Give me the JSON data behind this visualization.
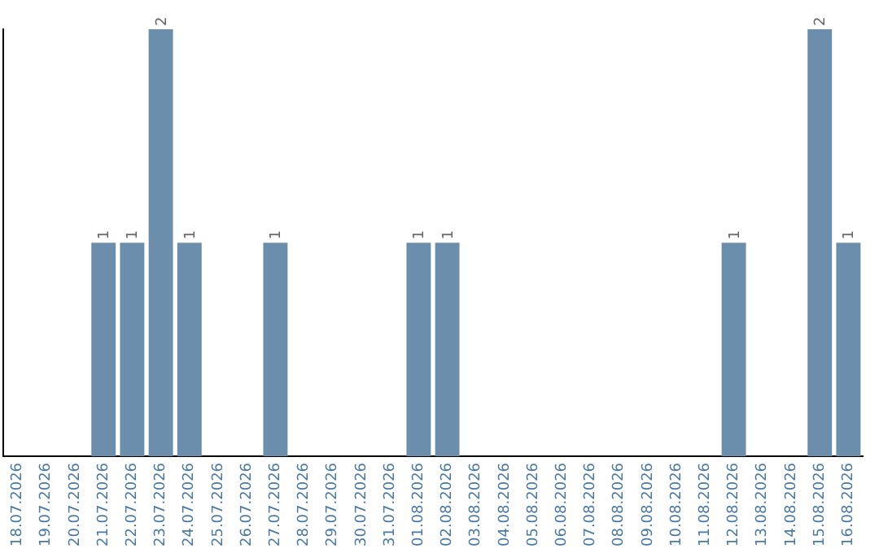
{
  "chart_data": {
    "type": "bar",
    "categories": [
      "18.07.2026",
      "19.07.2026",
      "20.07.2026",
      "21.07.2026",
      "22.07.2026",
      "23.07.2026",
      "24.07.2026",
      "25.07.2026",
      "26.07.2026",
      "27.07.2026",
      "28.07.2026",
      "29.07.2026",
      "30.07.2026",
      "31.07.2026",
      "01.08.2026",
      "02.08.2026",
      "03.08.2026",
      "04.08.2026",
      "05.08.2026",
      "06.08.2026",
      "07.08.2026",
      "08.08.2026",
      "09.08.2026",
      "10.08.2026",
      "11.08.2026",
      "12.08.2026",
      "13.08.2026",
      "14.08.2026",
      "15.08.2026",
      "16.08.2026"
    ],
    "values": [
      0,
      0,
      0,
      1,
      1,
      2,
      1,
      0,
      0,
      1,
      0,
      0,
      0,
      0,
      1,
      1,
      0,
      0,
      0,
      0,
      0,
      0,
      0,
      0,
      0,
      1,
      0,
      0,
      2,
      1
    ],
    "value_labels": [
      null,
      null,
      null,
      "1",
      "1",
      "2",
      "1",
      null,
      null,
      "1",
      null,
      null,
      null,
      null,
      "1",
      "1",
      null,
      null,
      null,
      null,
      null,
      null,
      null,
      null,
      null,
      "1",
      null,
      null,
      "2",
      "1"
    ],
    "color": "#6c8ead",
    "grid": false,
    "legend": false
  }
}
